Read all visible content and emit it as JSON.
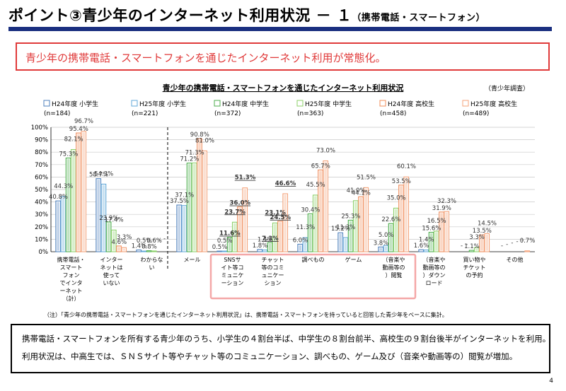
{
  "header": {
    "title_main": "ポイント③青少年のインターネット利用状況 － １",
    "title_sub": "（携帯電話・スマートフォン）"
  },
  "alert_text": "青少年の携帯電話・スマートフォンを通じたインターネット利用が常態化。",
  "note": "（注）「青少年の携帯電話・スマートフォンを通じたインターネット利用状況」は、携帯電話・スマートフォンを持っていると回答した青少年をベースに集計。",
  "summary": {
    "line1": "携帯電話・スマートフォンを所有する青少年のうち、小学生の４割台半ば、中学生の８割台前半、高校生の９割台後半がインターネットを利用。",
    "line2": "利用状況は、中高生では、ＳＮＳサイト等やチャット等のコミュニケーション、調べもの、ゲーム及び（音楽や動画等の）閲覧が増加。"
  },
  "page_number": "4",
  "colors": {
    "accent_red": "#e03a3a",
    "title_rule": "#1a2f80",
    "highlight_pink": "#f4a7a7"
  },
  "chart_data": {
    "type": "bar",
    "title": "青少年の携帯電話・スマートフォンを通じたインターネット利用状況",
    "source": "（青少年調査）",
    "ylim": [
      0,
      100
    ],
    "yticks": [
      "0%",
      "10%",
      "20%",
      "30%",
      "40%",
      "50%",
      "60%",
      "70%",
      "80%",
      "90%",
      "100%"
    ],
    "grid": true,
    "legend_position": "top",
    "categories": [
      "携帯電話・スマートフォンでインターネット（計）",
      "インターネットは使っていない",
      "わからない",
      "メール",
      "SNSサイト等コミュニケーション",
      "チャット等のコミュニケーション",
      "調べもの",
      "ゲーム",
      "（音楽や動画等の）閲覧",
      "（音楽や動画等の）ダウンロード",
      "買い物やチケットの予約",
      "その他"
    ],
    "category_lines": [
      [
        "携帯電話・",
        "スマート",
        "フォン",
        "でインタ",
        "ーネット",
        "（計）"
      ],
      [
        "インター",
        "ネットは",
        "使って",
        "いない"
      ],
      [
        "わからな",
        "い"
      ],
      [
        "メール"
      ],
      [
        "SNSサ",
        "イト等コ",
        "ミュニケ",
        "ーション"
      ],
      [
        "チャット",
        "等のコミ",
        "ュニケー",
        "ション"
      ],
      [
        "調べもの"
      ],
      [
        "ゲーム"
      ],
      [
        "（音楽や",
        "動画等の",
        "）閲覧"
      ],
      [
        "（音楽や",
        "動画等の",
        "）ダウン",
        "ロード"
      ],
      [
        "買い物や",
        "チケット",
        "の予約"
      ],
      [
        "その他"
      ]
    ],
    "series": [
      {
        "name": "H24年度 小学生",
        "n": "(n=184)",
        "color": "#4f81bd",
        "values": [
          40.8,
          58.7,
          1.4,
          37.5,
          0.5,
          1.8,
          6.0,
          15.2,
          3.8,
          1.6,
          null,
          null
        ],
        "labels": [
          "40.8%",
          "58.7%",
          "1.4%",
          "37.5%",
          "0.5%",
          "1.8%",
          "6.0%",
          "15.2%",
          "3.8%",
          "1.6%",
          "-",
          "-"
        ]
      },
      {
        "name": "H25年度 小学生",
        "n": "(n=221)",
        "color": "#62a8d8",
        "values": [
          44.3,
          54.3,
          0.5,
          37.1,
          0.5,
          1.4,
          11.3,
          11.3,
          5.0,
          1.4,
          null,
          null
        ],
        "labels": [
          "44.3%",
          "54.3%",
          "0.5%",
          "37.1%",
          "0.5%",
          "1.4%",
          "11.3%",
          "11.3%",
          "5.0%",
          "1.4%",
          "-",
          "-"
        ]
      },
      {
        "name": "H24年度 中学生",
        "n": "(n=372)",
        "color": "#4cae4c",
        "values": [
          75.3,
          23.9,
          0.8,
          71.2,
          11.6,
          7.3,
          30.4,
          25.3,
          22.6,
          15.6,
          1.1,
          null
        ],
        "labels": [
          "75.3%",
          "23.9%",
          "0.8%",
          "71.2%",
          "11.6%",
          "7.3%",
          "30.4%",
          "25.3%",
          "22.6%",
          "15.6%",
          "1.1%",
          "-"
        ]
      },
      {
        "name": "H25年度 中学生",
        "n": "(n=363)",
        "color": "#8cd16a",
        "values": [
          82.1,
          17.4,
          0.6,
          71.3,
          23.7,
          23.1,
          45.5,
          41.0,
          35.0,
          16.5,
          3.3,
          null
        ],
        "labels": [
          "82.1%",
          "17.4%",
          "0.6%",
          "71.3%",
          "23.7%",
          "23.1%",
          "45.5%",
          "41.0%",
          "35.0%",
          "16.5%",
          "3.3%",
          "-"
        ]
      },
      {
        "name": "H24年度 高校生",
        "n": "(n=458)",
        "color": "#f08c5a",
        "values": [
          95.4,
          4.6,
          0.0,
          90.8,
          36.0,
          24.5,
          65.7,
          44.1,
          53.5,
          31.9,
          13.5,
          0.0
        ],
        "labels": [
          "95.4%",
          "4.6%",
          "-",
          "90.8%",
          "36.0%",
          "24.5%",
          "65.7%",
          "44.1%",
          "53.5%",
          "31.9%",
          "13.5%",
          "-"
        ]
      },
      {
        "name": "H25年度 高校生",
        "n": "(n=489)",
        "color": "#f4a37a",
        "values": [
          96.7,
          3.3,
          0.0,
          81.0,
          51.3,
          46.6,
          73.0,
          51.5,
          60.1,
          32.3,
          14.5,
          0.7
        ],
        "labels": [
          "96.7%",
          "3.3%",
          "-",
          "81.0%",
          "51.3%",
          "46.6%",
          "73.0%",
          "51.5%",
          "60.1%",
          "32.3%",
          "14.5%",
          "0.7%"
        ]
      }
    ],
    "emphasized_labels": [
      "36.0%",
      "51.3%",
      "23.7%",
      "11.6%",
      "7.3%",
      "24.5%",
      "46.6%",
      "23.1%"
    ],
    "highlighted_categories": [
      4,
      5,
      6,
      7,
      8
    ]
  }
}
